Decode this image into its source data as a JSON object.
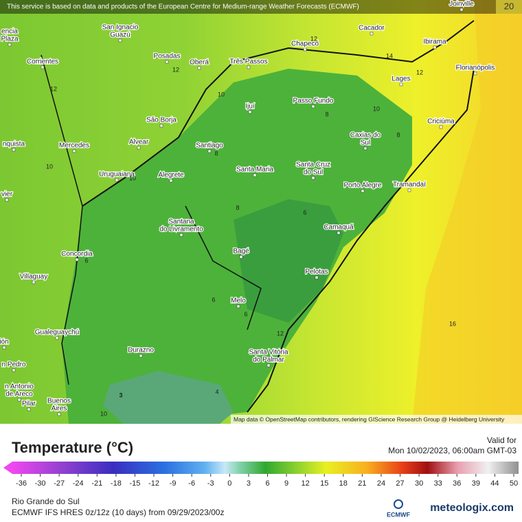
{
  "notice": "This service is based on data and products of the European Centre for Medium-range Weather Forecasts (ECMWF)",
  "corner_value": 20,
  "cities": [
    [
      "Joinville"
    ],
    [
      "San Ignacio",
      "Guazú"
    ],
    [
      "Cacador"
    ],
    [
      "Chapecó"
    ],
    [
      "Ibirama"
    ],
    [
      "Corrientes"
    ],
    [
      "Posadas"
    ],
    [
      "Oberá"
    ],
    [
      "Três Passos"
    ],
    [
      "Florianópolis"
    ],
    [
      "Lages"
    ],
    [
      "Passo Fundo"
    ],
    [
      "Ijuí"
    ],
    [
      "São Borja"
    ],
    [
      "Criciúma"
    ],
    [
      "Caxias do",
      "Sul"
    ],
    [
      "Alvear"
    ],
    [
      "Santiago"
    ],
    [
      "Mercedes"
    ],
    [
      "nquista"
    ],
    [
      "Uruguaiana"
    ],
    [
      "Alegrete"
    ],
    [
      "Santa Maria"
    ],
    [
      "Santa Cruz",
      "do Sul"
    ],
    [
      "Porto Alegre"
    ],
    [
      "Tramandaí"
    ],
    [
      "vier"
    ],
    [
      "Santana",
      "do Livramento"
    ],
    [
      "Camaquã"
    ],
    [
      "Concordia"
    ],
    [
      "Bagé"
    ],
    [
      "Villaguay"
    ],
    [
      "Pelotas"
    ],
    [
      "Melo"
    ],
    [
      "Gualeguaychú"
    ],
    [
      "ión"
    ],
    [
      "Santa Vitória",
      "do Palmar"
    ],
    [
      "Durazno"
    ],
    [
      "n Pedro"
    ],
    [
      "n Antonio",
      "de Areco"
    ],
    [
      "Pilar"
    ],
    [
      "Buenos",
      "Aires"
    ],
    [
      "encia",
      "Plaza"
    ]
  ],
  "contour_labels": [
    12,
    14,
    12,
    12,
    12,
    10,
    10,
    8,
    8,
    10,
    10,
    8,
    8,
    6,
    6,
    6,
    6,
    12,
    16,
    4,
    3,
    10
  ],
  "attribution": "Map data © OpenStreetMap contributors, rendering GIScience Research Group @ Heidelberg University",
  "legend": {
    "title": "Temperature (°C)",
    "ticks": [
      -36,
      -30,
      -27,
      -24,
      -21,
      -18,
      -15,
      -12,
      -9,
      -6,
      -3,
      0,
      3,
      6,
      9,
      12,
      15,
      18,
      21,
      24,
      27,
      30,
      33,
      36,
      39,
      44,
      50
    ]
  },
  "valid": {
    "label": "Valid for",
    "time": "Mon 10/02/2023, 06:00am GMT-03"
  },
  "region": "Rio Grande do Sul",
  "model": "ECMWF IFS HRES 0z/12z (10 days) from  09/29/2023/00z",
  "logos": {
    "ecmwf": "ECMWF",
    "brand": "meteologix.com"
  }
}
